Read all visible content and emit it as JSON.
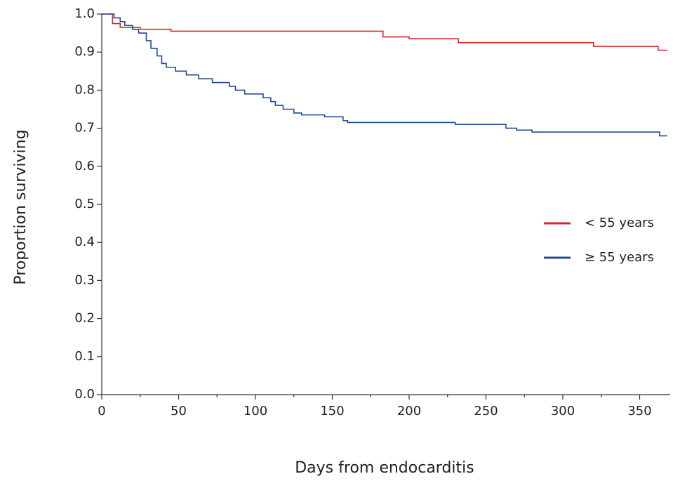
{
  "chart_data": {
    "type": "line",
    "step": "post",
    "xlabel": "Days from endocarditis",
    "ylabel": "Proportion surviving",
    "xlim": [
      0,
      370
    ],
    "ylim": [
      0,
      1.0
    ],
    "xticks": [
      0,
      50,
      100,
      150,
      200,
      250,
      300,
      350
    ],
    "xminorticks": [
      25,
      75,
      125,
      175,
      225,
      275,
      325
    ],
    "yticks": [
      {
        "value": 0,
        "label": "0.0"
      },
      0.1,
      0.2,
      0.3,
      0.4,
      0.5,
      0.6,
      0.7,
      0.8,
      0.9,
      {
        "value": 1.0,
        "label": "1.0"
      }
    ],
    "grid": false,
    "legend": "right",
    "series": [
      {
        "name": "< 55 years",
        "color": "#d9262b",
        "x": [
          0,
          7,
          12,
          25,
          45,
          183,
          200,
          232,
          320,
          362,
          368
        ],
        "values": [
          1.0,
          0.975,
          0.965,
          0.96,
          0.955,
          0.94,
          0.935,
          0.925,
          0.915,
          0.905,
          0.905
        ]
      },
      {
        "name": "≥ 55 years",
        "color": "#234a94",
        "x": [
          0,
          8,
          12,
          15,
          20,
          24,
          29,
          32,
          36,
          39,
          42,
          48,
          55,
          63,
          72,
          83,
          87,
          93,
          105,
          110,
          113,
          118,
          125,
          130,
          145,
          157,
          160,
          230,
          263,
          270,
          280,
          363,
          368
        ],
        "values": [
          1.0,
          0.99,
          0.98,
          0.97,
          0.96,
          0.95,
          0.93,
          0.91,
          0.89,
          0.87,
          0.86,
          0.85,
          0.84,
          0.83,
          0.82,
          0.81,
          0.8,
          0.79,
          0.78,
          0.77,
          0.76,
          0.75,
          0.74,
          0.735,
          0.73,
          0.72,
          0.715,
          0.71,
          0.7,
          0.695,
          0.69,
          0.68,
          0.68
        ]
      }
    ]
  }
}
